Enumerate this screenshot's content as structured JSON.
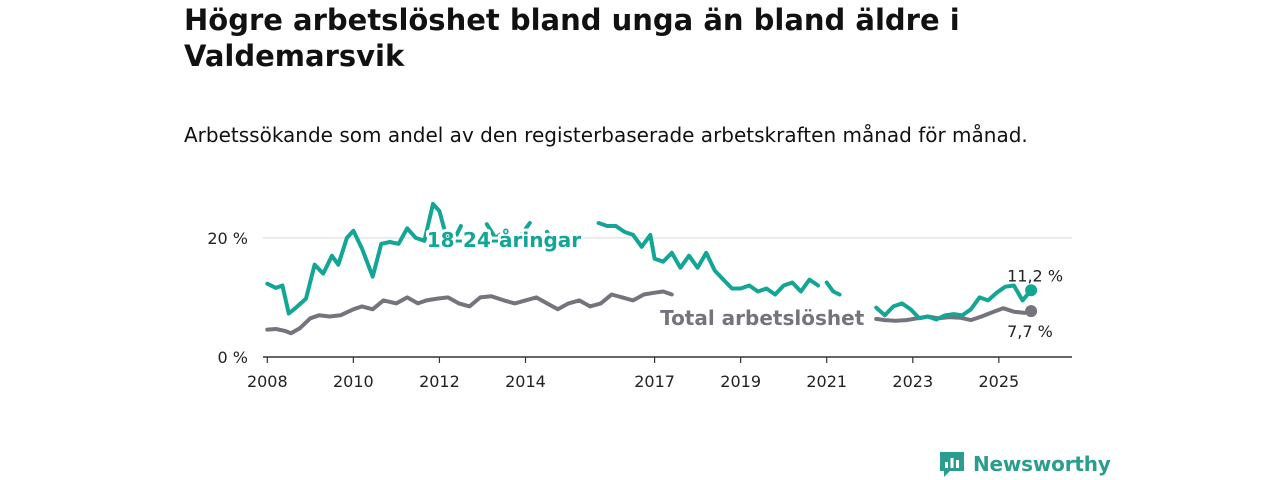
{
  "title": "Högre arbetslöshet bland unga än bland äldre i Valdemarsvik",
  "subtitle": "Arbetssökande som andel av den registerbaserade arbetskraften månad för månad.",
  "logo_text": "Newsworthy",
  "colors": {
    "youth": "#13a596",
    "total": "#76737c",
    "grid": "#d9d9d9",
    "axis": "#333333",
    "brand": "#2a9d8f"
  },
  "chart_data": {
    "type": "line",
    "title": "Högre arbetslöshet bland unga än bland äldre i Valdemarsvik",
    "xlabel": "",
    "ylabel": "",
    "xlim": [
      2007.9,
      2026.7
    ],
    "ylim": [
      0,
      23
    ],
    "y_ticks": [
      0,
      20
    ],
    "y_tick_labels": [
      "0 %",
      "20 %"
    ],
    "x_ticks": [
      2008,
      2010,
      2012,
      2014,
      2017,
      2019,
      2021,
      2023,
      2025
    ],
    "x_tick_labels": [
      "2008",
      "2010",
      "2012",
      "2014",
      "2017",
      "2019",
      "2021",
      "2023",
      "2025"
    ],
    "series": [
      {
        "name": "18-24-åringar",
        "label": "18-24-åringar",
        "color": "#13a596",
        "end_label": "11,2 %",
        "x": [
          2008.0,
          2008.2,
          2008.35,
          2008.5,
          2008.7,
          2008.9,
          2009.1,
          2009.3,
          2009.5,
          2009.65,
          2009.85,
          2010.0,
          2010.2,
          2010.45,
          2010.65,
          2010.85,
          2011.05,
          2011.25,
          2011.45,
          2011.65,
          2011.85,
          2012.0,
          2012.15,
          2012.3,
          2012.5,
          null,
          2013.1,
          2013.3,
          2013.5,
          2013.7,
          2013.9,
          2014.1,
          null,
          2014.5,
          2014.7,
          2014.85,
          null,
          2015.7,
          2015.9,
          2016.1,
          2016.3,
          2016.5,
          2016.7,
          2016.9,
          2017.0,
          2017.2,
          2017.4,
          2017.6,
          2017.8,
          2018.0,
          2018.2,
          2018.4,
          2018.6,
          2018.8,
          2019.0,
          2019.2,
          2019.4,
          2019.6,
          2019.8,
          2020.0,
          2020.2,
          2020.4,
          2020.6,
          2020.8,
          null,
          2021.0,
          2021.15,
          2021.3,
          null,
          2022.15,
          2022.35,
          2022.55,
          2022.75,
          2022.95,
          2023.15,
          2023.35,
          2023.55,
          2023.75,
          2023.95,
          2024.15,
          2024.35,
          2024.55,
          2024.75,
          2024.95,
          2025.15,
          2025.35,
          2025.55,
          2025.75
        ],
        "y": [
          12.3,
          11.6,
          12.0,
          7.3,
          8.5,
          9.8,
          15.5,
          14.0,
          17.0,
          15.5,
          20.0,
          21.2,
          18.2,
          13.5,
          19.0,
          19.3,
          19.0,
          21.6,
          20.0,
          19.5,
          25.7,
          24.5,
          20.5,
          19.0,
          22.0,
          null,
          22.3,
          20.0,
          21.0,
          18.5,
          20.5,
          22.5,
          null,
          21.0,
          19.0,
          18.5,
          null,
          22.5,
          22.0,
          22.0,
          21.0,
          20.5,
          18.5,
          20.5,
          16.5,
          16.0,
          17.5,
          15.0,
          17.0,
          15.0,
          17.5,
          14.5,
          13.0,
          11.5,
          11.5,
          12.0,
          11.0,
          11.5,
          10.5,
          12.0,
          12.5,
          11.0,
          13.0,
          12.0,
          null,
          12.5,
          11.0,
          10.5,
          null,
          8.3,
          7.0,
          8.5,
          9.0,
          8.0,
          6.5,
          6.8,
          6.3,
          7.0,
          7.2,
          7.0,
          8.0,
          10.0,
          9.5,
          10.8,
          11.8,
          12.0,
          9.5,
          11.2
        ]
      },
      {
        "name": "Total arbetslöshet",
        "label": "Total arbetslöshet",
        "color": "#76737c",
        "end_label": "7,7 %",
        "x": [
          2008.0,
          2008.2,
          2008.4,
          2008.55,
          2008.75,
          2009.0,
          2009.2,
          2009.45,
          2009.7,
          2010.0,
          2010.2,
          2010.45,
          2010.7,
          2011.0,
          2011.25,
          2011.5,
          2011.7,
          2011.95,
          2012.2,
          2012.45,
          2012.7,
          2012.95,
          2013.2,
          2013.5,
          2013.75,
          2014.0,
          2014.25,
          2014.5,
          2014.75,
          2015.0,
          2015.25,
          2015.5,
          2015.75,
          2016.0,
          2016.25,
          2016.5,
          2016.75,
          2017.0,
          2017.2,
          2017.4,
          null,
          2022.15,
          2022.35,
          2022.6,
          2022.85,
          2023.1,
          2023.35,
          2023.6,
          2023.85,
          2024.1,
          2024.35,
          2024.6,
          2024.85,
          2025.1,
          2025.35,
          2025.6,
          2025.75
        ],
        "y": [
          4.6,
          4.7,
          4.4,
          4.0,
          4.8,
          6.5,
          7.0,
          6.8,
          7.0,
          8.0,
          8.5,
          8.0,
          9.5,
          9.0,
          10.0,
          9.0,
          9.5,
          9.8,
          10.0,
          9.0,
          8.5,
          10.0,
          10.2,
          9.5,
          9.0,
          9.5,
          10.0,
          9.0,
          8.0,
          9.0,
          9.5,
          8.5,
          9.0,
          10.5,
          10.0,
          9.5,
          10.5,
          10.8,
          11.0,
          10.5,
          null,
          6.4,
          6.2,
          6.1,
          6.2,
          6.5,
          6.8,
          6.5,
          6.7,
          6.6,
          6.2,
          6.8,
          7.5,
          8.2,
          7.6,
          7.4,
          7.7
        ]
      }
    ]
  }
}
